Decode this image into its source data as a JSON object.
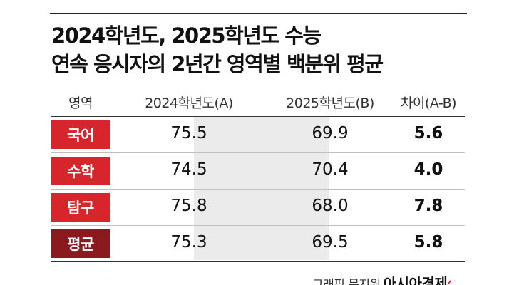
{
  "title": {
    "line1": "2024학년도, 2025학년도 수능",
    "line2": "연속 응시자의 2년간 영역별 백분위 평균"
  },
  "table": {
    "headers": [
      "영역",
      "2024학년도(A)",
      "2025학년도(B)",
      "차이(A-B)"
    ],
    "rows": [
      {
        "label": "국어",
        "a": "75.5",
        "b": "69.9",
        "diff": "5.6",
        "color": "#d6252b"
      },
      {
        "label": "수학",
        "a": "74.5",
        "b": "70.4",
        "diff": "4.0",
        "color": "#d6252b"
      },
      {
        "label": "탐구",
        "a": "75.8",
        "b": "68.0",
        "diff": "7.8",
        "color": "#d6252b"
      },
      {
        "label": "평균",
        "a": "75.3",
        "b": "69.5",
        "diff": "5.8",
        "color": "#8a1a1e"
      }
    ]
  },
  "credit": {
    "text": "그래픽 문지원",
    "brand": "아시아경제",
    "accent": "#d6252b"
  }
}
